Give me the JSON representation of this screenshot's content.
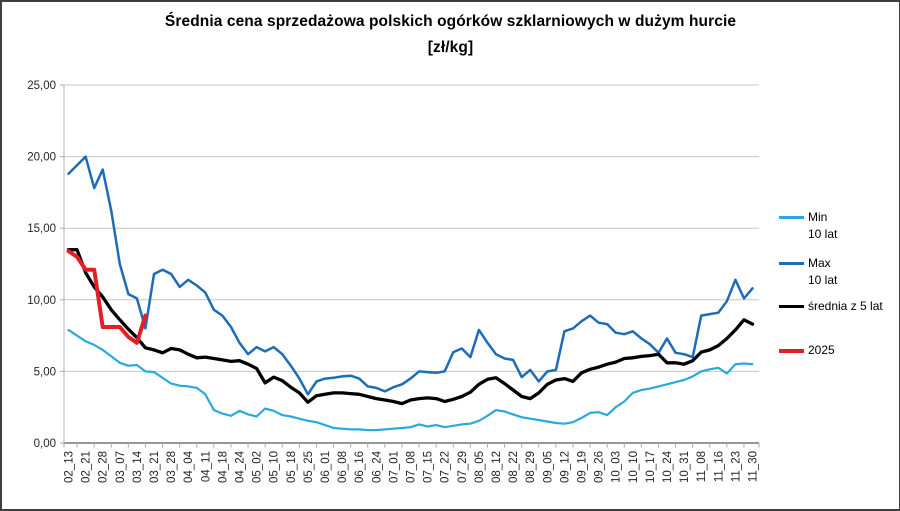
{
  "title": {
    "line1": "Średnia cena sprzedażowa polskich ogórków szklarniowych w dużym hurcie",
    "line2": "[zł/kg]"
  },
  "colors": {
    "min": "#2BA8DF",
    "max": "#1E6CB5",
    "avg": "#000000",
    "y2025": "#E31E24",
    "grid": "#C6C6C6",
    "axis_light": "#B3B3B3",
    "axis_dark": "#595959",
    "tick": "#A9A9A9",
    "text": "#262626"
  },
  "legend": {
    "items": [
      {
        "label": "Min",
        "sublabel": "10 lat",
        "key": "min"
      },
      {
        "label": "Max",
        "sublabel": "10 lat",
        "key": "max"
      },
      {
        "label": "średnia z 5 lat",
        "sublabel": "",
        "key": "avg"
      },
      {
        "label": "2025",
        "sublabel": "",
        "key": "y2025"
      }
    ]
  },
  "chart_data": {
    "type": "line",
    "title": "Średnia cena sprzedażowa polskich ogórków szklarniowych w dużym hurcie [zł/kg]",
    "xlabel": "",
    "ylabel": "",
    "ylim": [
      0,
      25
    ],
    "ytick_step": 5,
    "ytick_labels": [
      "0,00",
      "5,00",
      "10,00",
      "15,00",
      "20,00",
      "25,00"
    ],
    "grid": true,
    "legend_position": "right",
    "categories": [
      "02_13",
      "02_21",
      "02_28",
      "03_07",
      "03_14",
      "03_21",
      "03_28",
      "04_04",
      "04_11",
      "04_18",
      "04_24",
      "05_02",
      "05_10",
      "05_18",
      "05_25",
      "06_01",
      "06_08",
      "06_16",
      "06_24",
      "07_01",
      "07_08",
      "07_15",
      "07_22",
      "07_29",
      "08_05",
      "08_12",
      "08_22",
      "08_29",
      "09_05",
      "09_12",
      "09_19",
      "09_26",
      "10_03",
      "10_10",
      "10_17",
      "10_24",
      "10_31",
      "11_08",
      "11_16",
      "11_23",
      "11_30"
    ],
    "series": [
      {
        "name": "Min 10 lat",
        "color_key": "min",
        "x_step": 0.5,
        "values": [
          7.9,
          7.5,
          7.1,
          6.85,
          6.5,
          6.05,
          5.6,
          5.4,
          5.45,
          5.0,
          4.95,
          4.55,
          4.15,
          4.0,
          3.95,
          3.85,
          3.4,
          2.3,
          2.05,
          1.9,
          2.25,
          2.0,
          1.85,
          2.4,
          2.25,
          1.95,
          1.85,
          1.7,
          1.55,
          1.45,
          1.25,
          1.05,
          1.0,
          0.95,
          0.95,
          0.9,
          0.9,
          0.95,
          1.0,
          1.05,
          1.1,
          1.3,
          1.15,
          1.25,
          1.1,
          1.2,
          1.3,
          1.35,
          1.55,
          1.9,
          2.3,
          2.2,
          2.0,
          1.8,
          1.7,
          1.6,
          1.5,
          1.4,
          1.35,
          1.45,
          1.75,
          2.1,
          2.15,
          1.95,
          2.5,
          2.9,
          3.5,
          3.7,
          3.8,
          3.95,
          4.1,
          4.25,
          4.4,
          4.65,
          5.0,
          5.15,
          5.25,
          4.85,
          5.5,
          5.55,
          5.5
        ]
      },
      {
        "name": "Max 10 lat",
        "color_key": "max",
        "x_step": 0.5,
        "values": [
          18.8,
          19.4,
          20.0,
          17.8,
          19.1,
          16.2,
          12.5,
          10.4,
          10.1,
          8.0,
          11.8,
          12.1,
          11.8,
          10.9,
          11.4,
          11.0,
          10.5,
          9.3,
          8.9,
          8.1,
          7.0,
          6.2,
          6.7,
          6.4,
          6.7,
          6.2,
          5.4,
          4.5,
          3.4,
          4.3,
          4.5,
          4.55,
          4.65,
          4.7,
          4.5,
          3.95,
          3.85,
          3.6,
          3.9,
          4.1,
          4.5,
          5.0,
          4.95,
          4.9,
          5.0,
          6.35,
          6.6,
          6.0,
          7.9,
          7.0,
          6.2,
          5.9,
          5.8,
          4.6,
          5.1,
          4.3,
          5.0,
          5.1,
          7.8,
          8.0,
          8.5,
          8.9,
          8.4,
          8.3,
          7.7,
          7.6,
          7.8,
          7.3,
          6.9,
          6.3,
          7.3,
          6.3,
          6.2,
          6.0,
          8.9,
          9.0,
          9.1,
          9.9,
          11.4,
          10.1,
          10.8
        ]
      },
      {
        "name": "średnia z 5 lat",
        "color_key": "avg",
        "x_step": 0.5,
        "values": [
          13.5,
          13.5,
          11.9,
          10.9,
          10.2,
          9.3,
          8.6,
          7.95,
          7.35,
          6.65,
          6.5,
          6.3,
          6.6,
          6.5,
          6.2,
          5.95,
          6.0,
          5.9,
          5.8,
          5.7,
          5.75,
          5.5,
          5.2,
          4.2,
          4.6,
          4.35,
          3.9,
          3.5,
          2.85,
          3.3,
          3.4,
          3.5,
          3.5,
          3.45,
          3.4,
          3.25,
          3.1,
          3.0,
          2.9,
          2.75,
          3.0,
          3.1,
          3.15,
          3.1,
          2.9,
          3.05,
          3.25,
          3.55,
          4.1,
          4.45,
          4.55,
          4.15,
          3.7,
          3.25,
          3.1,
          3.5,
          4.1,
          4.4,
          4.5,
          4.3,
          4.9,
          5.15,
          5.3,
          5.5,
          5.65,
          5.9,
          5.95,
          6.05,
          6.1,
          6.2,
          5.6,
          5.6,
          5.5,
          5.75,
          6.35,
          6.5,
          6.8,
          7.3,
          7.9,
          8.6,
          8.3
        ]
      },
      {
        "name": "2025",
        "color_key": "y2025",
        "x_step": 0.5,
        "values": [
          13.4,
          13.0,
          12.1,
          12.1,
          8.1,
          8.1,
          8.1,
          7.4,
          7.0,
          8.9
        ]
      }
    ]
  }
}
